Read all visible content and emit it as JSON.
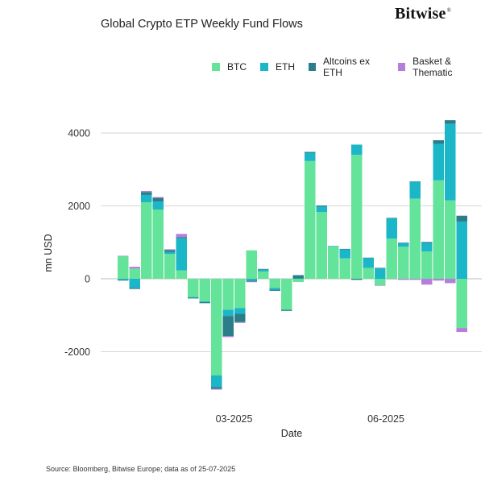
{
  "title": "Global Crypto ETP Weekly Fund Flows",
  "logo": {
    "text": "Bitwise",
    "mark": "®"
  },
  "legend": [
    {
      "label": "BTC",
      "color": "#64e39a"
    },
    {
      "label": "ETH",
      "color": "#1bb6c8"
    },
    {
      "label": "Altcoins ex ETH",
      "color": "#2b7d8a"
    },
    {
      "label": "Basket & Thematic",
      "color": "#b57edc"
    }
  ],
  "source": "Source: Bloomberg, Bitwise Europe; data as of  25-07-2025",
  "chart_data": {
    "type": "bar",
    "stacked": true,
    "xlabel": "Date",
    "ylabel": "mn USD",
    "ylim": [
      -3000,
      4500
    ],
    "yticks": [
      -2000,
      0,
      2000,
      4000
    ],
    "xtick_labels": [
      {
        "label": "03-2025",
        "after_week_index": 9
      },
      {
        "label": "06-2025",
        "after_week_index": 22
      }
    ],
    "grid": "horizontal",
    "legend_position": "top-right",
    "series": [
      {
        "name": "BTC",
        "color": "#64e39a",
        "values": [
          620,
          280,
          2100,
          1900,
          680,
          230,
          -500,
          -620,
          -2650,
          -850,
          -800,
          780,
          200,
          -250,
          -850,
          -90,
          3230,
          1830,
          880,
          560,
          3400,
          300,
          -180,
          1100,
          880,
          2200,
          750,
          2700,
          2150,
          -1350
        ]
      },
      {
        "name": "ETH",
        "color": "#1bb6c8",
        "values": [
          -30,
          -250,
          200,
          220,
          60,
          880,
          -20,
          -20,
          -320,
          -170,
          -160,
          -50,
          50,
          -50,
          0,
          10,
          220,
          150,
          20,
          250,
          280,
          270,
          280,
          560,
          90,
          460,
          230,
          1000,
          2100,
          1570
        ]
      },
      {
        "name": "Altcoins ex ETH",
        "color": "#2b7d8a",
        "values": [
          -20,
          -30,
          80,
          100,
          50,
          30,
          -20,
          -30,
          -50,
          -550,
          -230,
          -30,
          20,
          -30,
          -30,
          90,
          30,
          30,
          0,
          10,
          -30,
          10,
          20,
          10,
          20,
          10,
          30,
          100,
          100,
          160
        ]
      },
      {
        "name": "Basket & Thematic",
        "color": "#b57edc",
        "values": [
          10,
          50,
          30,
          20,
          20,
          90,
          0,
          0,
          -20,
          -30,
          -20,
          -10,
          0,
          0,
          0,
          0,
          0,
          0,
          0,
          0,
          0,
          0,
          -10,
          -10,
          -30,
          -30,
          -160,
          -50,
          -120,
          -110
        ]
      }
    ]
  }
}
